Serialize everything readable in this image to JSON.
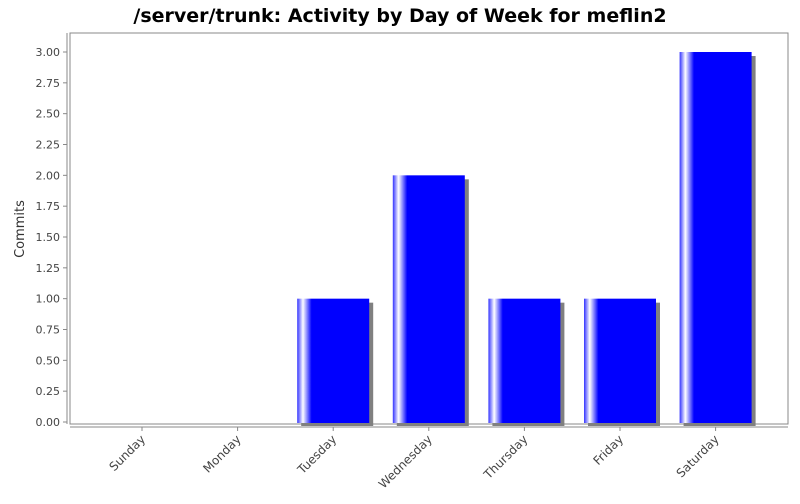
{
  "chart_data": {
    "type": "bar",
    "title": "/server/trunk: Activity by Day of Week for meflin2",
    "xlabel": "",
    "ylabel": "Commits",
    "categories": [
      "Sunday",
      "Monday",
      "Tuesday",
      "Wednesday",
      "Thursday",
      "Friday",
      "Saturday"
    ],
    "values": [
      0,
      0,
      1,
      2,
      1,
      1,
      3
    ],
    "ylim": [
      0,
      3
    ],
    "yticks": [
      "0.00",
      "0.25",
      "0.50",
      "0.75",
      "1.00",
      "1.25",
      "1.50",
      "1.75",
      "2.00",
      "2.25",
      "2.50",
      "2.75",
      "3.00"
    ],
    "grid": false,
    "bar_color": "#0000ff",
    "shadow_color": "#808080"
  }
}
